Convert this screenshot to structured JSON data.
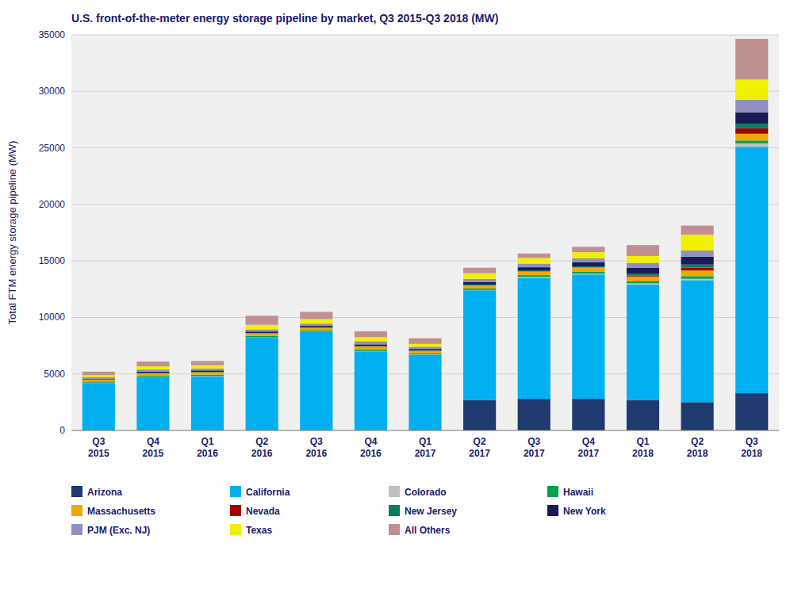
{
  "chart_data": {
    "type": "bar",
    "stacked": true,
    "title": "U.S. front-of-the-meter energy storage pipeline by market, Q3 2015-Q3 2018 (MW)",
    "y_label": "Total FTM energy storage pipeline (MW)",
    "categories": [
      "Q3\n2015",
      "Q4\n2015",
      "Q1\n2016",
      "Q2\n2016",
      "Q3\n2016",
      "Q4\n2016",
      "Q1\n2017",
      "Q2\n2017",
      "Q3\n2017",
      "Q4\n2017",
      "Q1\n2018",
      "Q2\n2018",
      "Q3\n2018"
    ],
    "series": [
      {
        "name": "Arizona",
        "color": "#1e3a6e",
        "values": [
          0,
          0,
          0,
          0,
          0,
          0,
          0,
          2700,
          2800,
          2800,
          2700,
          2500,
          3300
        ]
      },
      {
        "name": "California",
        "color": "#00b0f0",
        "values": [
          4200,
          4700,
          4800,
          8200,
          8700,
          7000,
          6700,
          9700,
          10700,
          11000,
          10200,
          10800,
          21800
        ]
      },
      {
        "name": "Colorado",
        "color": "#c0c0c0",
        "values": [
          30,
          30,
          30,
          30,
          30,
          30,
          30,
          30,
          80,
          80,
          120,
          120,
          300
        ]
      },
      {
        "name": "Hawaii",
        "color": "#00a050",
        "values": [
          100,
          100,
          100,
          120,
          120,
          120,
          100,
          130,
          160,
          180,
          200,
          230,
          250
        ]
      },
      {
        "name": "Massachusetts",
        "color": "#f0a800",
        "values": [
          160,
          220,
          220,
          240,
          240,
          280,
          220,
          280,
          320,
          360,
          400,
          500,
          600
        ]
      },
      {
        "name": "Nevada",
        "color": "#a00000",
        "values": [
          0,
          0,
          0,
          0,
          0,
          0,
          0,
          0,
          0,
          0,
          80,
          250,
          500
        ]
      },
      {
        "name": "New Jersey",
        "color": "#008060",
        "values": [
          30,
          30,
          30,
          30,
          30,
          30,
          30,
          70,
          100,
          100,
          180,
          280,
          400
        ]
      },
      {
        "name": "New York",
        "color": "#1a1a5a",
        "values": [
          70,
          130,
          130,
          130,
          130,
          160,
          130,
          220,
          280,
          350,
          500,
          700,
          1000
        ]
      },
      {
        "name": "PJM (Exc. NJ)",
        "color": "#9090c0",
        "values": [
          150,
          180,
          180,
          200,
          200,
          280,
          200,
          280,
          320,
          350,
          450,
          550,
          1100
        ]
      },
      {
        "name": "Texas",
        "color": "#f0f000",
        "values": [
          150,
          280,
          280,
          400,
          400,
          350,
          250,
          500,
          500,
          550,
          600,
          1400,
          1800
        ]
      },
      {
        "name": "All Others",
        "color": "#c09090",
        "values": [
          310,
          430,
          380,
          800,
          640,
          530,
          500,
          490,
          400,
          480,
          970,
          800,
          3600
        ]
      }
    ],
    "ylim": [
      0,
      35000
    ],
    "yticks": [
      0,
      5000,
      10000,
      15000,
      20000,
      25000,
      30000,
      35000
    ],
    "grid": true,
    "legend": "bottom"
  }
}
